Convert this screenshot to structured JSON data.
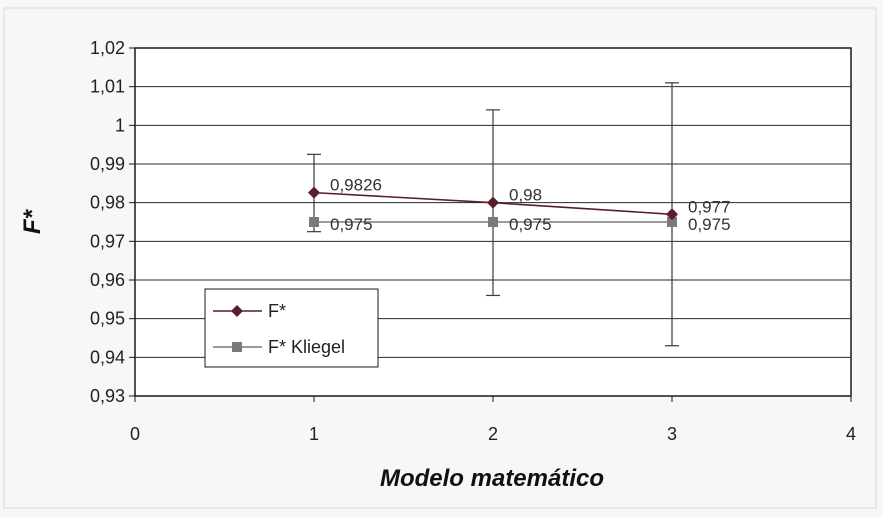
{
  "chart_data": {
    "type": "line",
    "title": "",
    "xlabel": "Modelo matemático",
    "ylabel": "F*",
    "xlim": [
      0,
      4
    ],
    "ylim": [
      0.93,
      1.02
    ],
    "x_ticks": [
      "0",
      "1",
      "2",
      "3",
      "4"
    ],
    "y_ticks": [
      "0,93",
      "0,94",
      "0,95",
      "0,96",
      "0,97",
      "0,98",
      "0,99",
      "1",
      "1,01",
      "1,02"
    ],
    "grid": "horizontal",
    "legend_position": "bottom-left",
    "series": [
      {
        "name": "F*",
        "marker": "diamond",
        "color": "#5a1e2a",
        "x": [
          1,
          2,
          3
        ],
        "values": [
          0.9826,
          0.98,
          0.977
        ],
        "labels": [
          "0,9826",
          "0,98",
          "0,977"
        ],
        "error_low": [
          0.9725,
          0.956,
          0.943
        ],
        "error_high": [
          0.9925,
          1.004,
          1.011
        ]
      },
      {
        "name": "F* Kliegel",
        "marker": "square",
        "color": "#7a7a7a",
        "x": [
          1,
          2,
          3
        ],
        "values": [
          0.975,
          0.975,
          0.975
        ],
        "labels": [
          "0,975",
          "0,975",
          "0,975"
        ]
      }
    ]
  }
}
